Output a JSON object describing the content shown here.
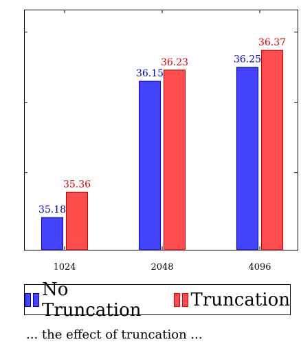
{
  "chart_data": {
    "type": "bar",
    "categories": [
      "1024",
      "2048",
      "4096"
    ],
    "series": [
      {
        "name": "No Truncation",
        "values": [
          35.18,
          36.15,
          36.25
        ],
        "labels": [
          "35.18",
          "36.15",
          "36.25"
        ],
        "color": "#4444ff",
        "stroke": "#0000cc",
        "label_color": "#0000cc"
      },
      {
        "name": "Truncation",
        "values": [
          35.36,
          36.23,
          36.37
        ],
        "labels": [
          "35.36",
          "36.23",
          "36.37"
        ],
        "color": "#ff4d4d",
        "stroke": "#cc0000",
        "label_color": "#dd0000"
      }
    ],
    "ylim": [
      34.95,
      36.66
    ],
    "grid": false,
    "legend_position": "bottom"
  },
  "caption": "... the effect of truncation ..."
}
